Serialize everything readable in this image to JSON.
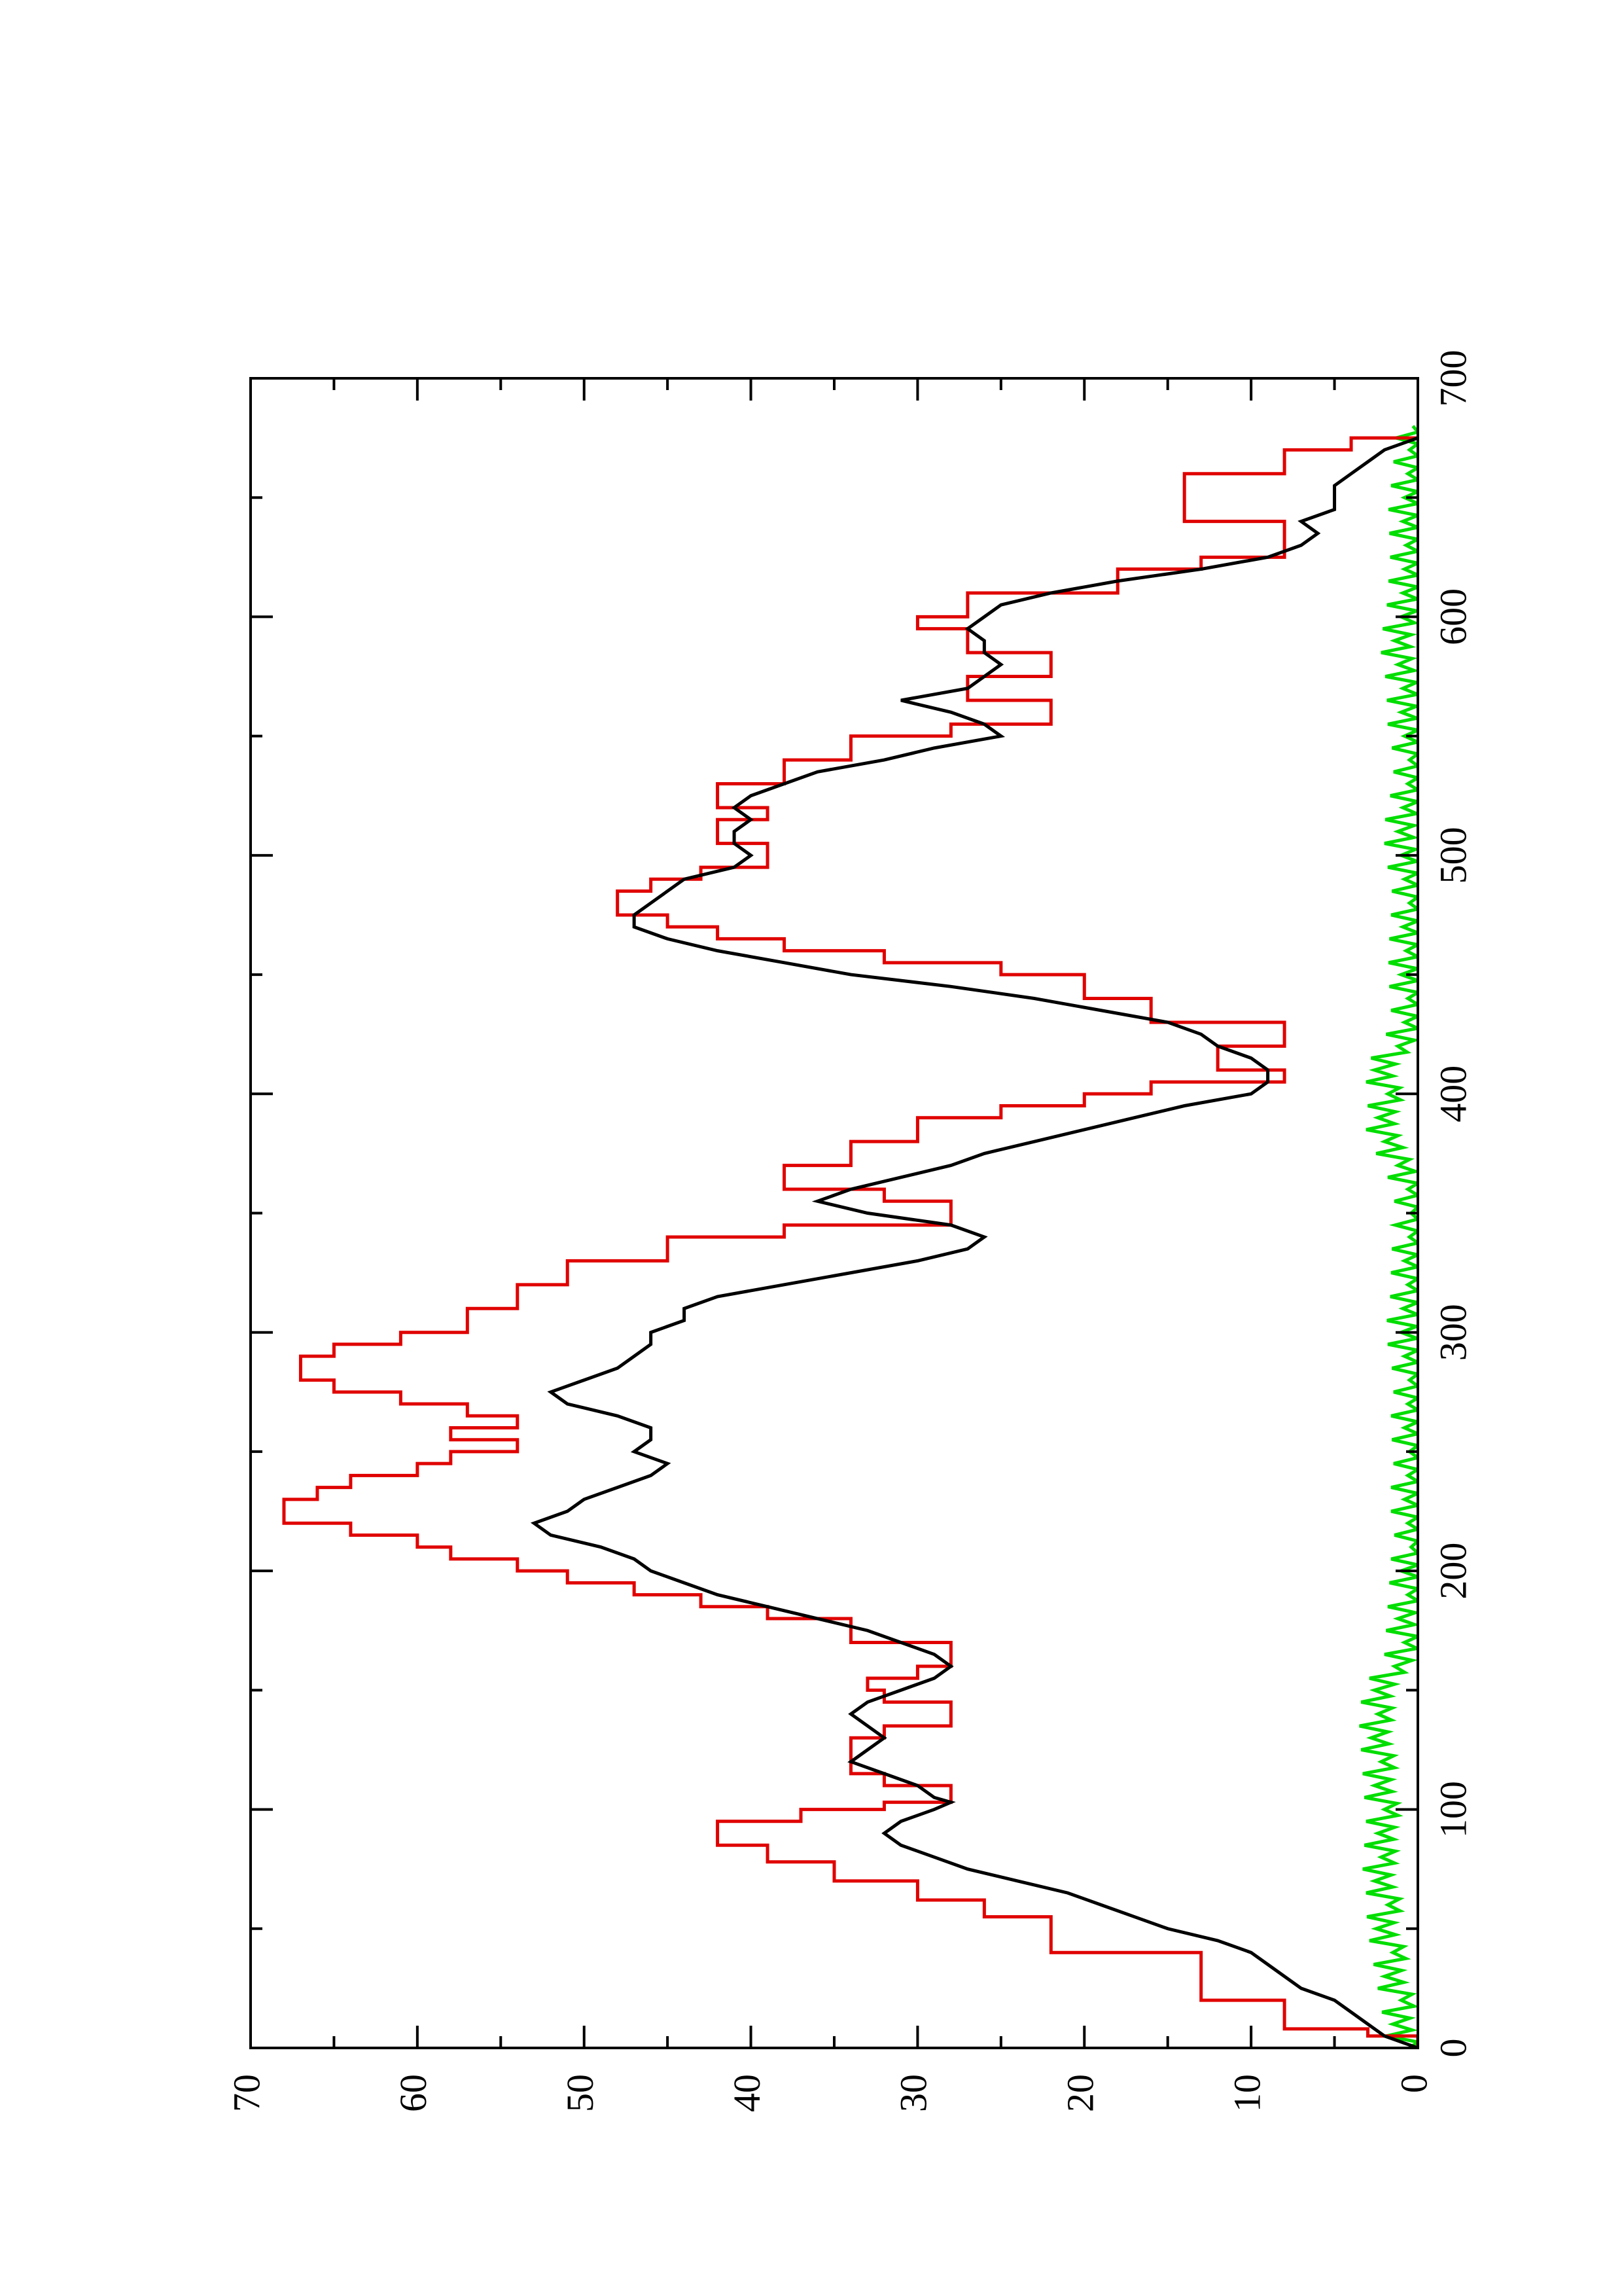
{
  "chart_data": {
    "type": "line",
    "orientation": "rotated-90-ccw",
    "title": "",
    "xlabel": "",
    "ylabel": "",
    "xlim": [
      0,
      700
    ],
    "ylim": [
      0,
      70
    ],
    "x_ticks_major": [
      0,
      100,
      200,
      300,
      400,
      500,
      600,
      700
    ],
    "x_ticks_minor": [
      50,
      150,
      250,
      350,
      450,
      550,
      650
    ],
    "y_ticks_major": [
      0,
      10,
      20,
      30,
      40,
      50,
      60,
      70
    ],
    "y_ticks_minor": [
      5,
      15,
      25,
      35,
      45,
      55,
      65
    ],
    "x_tick_labels": [
      "0",
      "100",
      "200",
      "300",
      "400",
      "500",
      "600",
      "700"
    ],
    "y_tick_labels": [
      "0",
      "10",
      "20",
      "30",
      "40",
      "50",
      "60",
      "70"
    ],
    "grid": false,
    "legend": "none",
    "series": [
      {
        "color": "#e00000",
        "style": "step",
        "x": [
          0,
          5,
          8,
          15,
          20,
          30,
          40,
          48,
          55,
          62,
          70,
          78,
          85,
          90,
          95,
          100,
          103,
          106,
          110,
          115,
          120,
          125,
          130,
          135,
          140,
          145,
          150,
          155,
          160,
          165,
          170,
          175,
          180,
          185,
          190,
          195,
          200,
          205,
          210,
          215,
          220,
          225,
          230,
          235,
          240,
          245,
          250,
          255,
          260,
          265,
          270,
          275,
          280,
          285,
          290,
          295,
          300,
          310,
          320,
          330,
          340,
          345,
          350,
          355,
          360,
          370,
          380,
          390,
          395,
          400,
          405,
          410,
          415,
          420,
          430,
          440,
          450,
          455,
          460,
          465,
          470,
          475,
          480,
          485,
          490,
          495,
          500,
          505,
          510,
          515,
          520,
          525,
          530,
          540,
          550,
          555,
          560,
          565,
          570,
          575,
          580,
          585,
          590,
          595,
          600,
          610,
          620,
          625,
          630,
          640,
          650,
          660,
          665,
          670,
          675
        ],
        "y": [
          0,
          3,
          8,
          8,
          13,
          13,
          22,
          22,
          26,
          30,
          35,
          39,
          42,
          42,
          37,
          32,
          28,
          28,
          32,
          34,
          34,
          34,
          32,
          28,
          28,
          32,
          33,
          30,
          28,
          28,
          34,
          34,
          39,
          43,
          47,
          51,
          54,
          58,
          60,
          64,
          68,
          68,
          66,
          64,
          60,
          58,
          54,
          58,
          54,
          57,
          61,
          65,
          67,
          67,
          65,
          61,
          57,
          54,
          51,
          45,
          38,
          28,
          28,
          32,
          38,
          34,
          30,
          25,
          20,
          16,
          8,
          12,
          12,
          8,
          16,
          20,
          25,
          32,
          38,
          42,
          45,
          48,
          48,
          46,
          43,
          39,
          39,
          42,
          42,
          39,
          42,
          42,
          38,
          34,
          28,
          22,
          22,
          27,
          27,
          22,
          22,
          27,
          27,
          30,
          27,
          18,
          13,
          8,
          8,
          14,
          14,
          8,
          8,
          4,
          0
        ]
      },
      {
        "color": "#000000",
        "style": "line",
        "x": [
          0,
          5,
          10,
          15,
          20,
          25,
          30,
          35,
          40,
          45,
          50,
          55,
          60,
          65,
          70,
          75,
          80,
          85,
          90,
          95,
          100,
          103,
          105,
          110,
          115,
          120,
          125,
          130,
          135,
          140,
          145,
          150,
          155,
          160,
          165,
          170,
          175,
          180,
          185,
          190,
          195,
          200,
          205,
          210,
          215,
          220,
          225,
          230,
          235,
          240,
          245,
          250,
          255,
          260,
          265,
          270,
          275,
          280,
          285,
          290,
          295,
          300,
          305,
          310,
          315,
          320,
          325,
          330,
          335,
          340,
          345,
          350,
          355,
          360,
          365,
          370,
          375,
          380,
          385,
          390,
          395,
          400,
          405,
          410,
          415,
          420,
          425,
          430,
          435,
          440,
          445,
          450,
          455,
          460,
          465,
          470,
          475,
          480,
          485,
          490,
          495,
          500,
          505,
          510,
          515,
          520,
          525,
          530,
          535,
          540,
          545,
          550,
          555,
          560,
          565,
          570,
          575,
          580,
          585,
          590,
          595,
          600,
          605,
          610,
          615,
          620,
          625,
          630,
          635,
          640,
          645,
          650,
          655,
          660,
          665,
          670,
          675
        ],
        "y": [
          0,
          2,
          3,
          4,
          5,
          7,
          8,
          9,
          10,
          12,
          15,
          17,
          19,
          21,
          24,
          27,
          29,
          31,
          32,
          31,
          29,
          28,
          29,
          30,
          32,
          34,
          33,
          32,
          33,
          34,
          33,
          31,
          29,
          28,
          29,
          31,
          33,
          36,
          39,
          42,
          44,
          46,
          47,
          49,
          52,
          53,
          51,
          50,
          48,
          46,
          45,
          47,
          46,
          46,
          48,
          51,
          52,
          50,
          48,
          47,
          46,
          46,
          44,
          44,
          42,
          38,
          34,
          30,
          27,
          26,
          28,
          33,
          36,
          34,
          31,
          28,
          26,
          23,
          20,
          17,
          14,
          10,
          9,
          9,
          10,
          12,
          13,
          15,
          19,
          23,
          28,
          34,
          38,
          42,
          45,
          47,
          47,
          46,
          45,
          44,
          41,
          40,
          41,
          41,
          40,
          41,
          40,
          38,
          36,
          32,
          29,
          25,
          26,
          28,
          31,
          27,
          26,
          25,
          26,
          26,
          27,
          26,
          25,
          22,
          18,
          13,
          9,
          7,
          6,
          7,
          5,
          5,
          5,
          4,
          3,
          2,
          0
        ]
      },
      {
        "color": "#00dd00",
        "style": "noise",
        "x": [
          0,
          10,
          20,
          30,
          40,
          50,
          60,
          70,
          80,
          90,
          100,
          110,
          120,
          130,
          140,
          150,
          160,
          170,
          180,
          190,
          200,
          210,
          220,
          230,
          240,
          250,
          260,
          270,
          280,
          290,
          300,
          310,
          320,
          330,
          340,
          350,
          360,
          370,
          380,
          390,
          400,
          410,
          420,
          430,
          440,
          450,
          460,
          470,
          480,
          490,
          500,
          510,
          520,
          530,
          540,
          550,
          560,
          570,
          580,
          590,
          600,
          610,
          620,
          630,
          640,
          650,
          660,
          670,
          680
        ],
        "y": [
          0.5,
          1.5,
          1.0,
          2.0,
          1.5,
          2.5,
          1.8,
          2.6,
          2.2,
          2.4,
          2.0,
          2.6,
          2.2,
          2.8,
          2.4,
          2.6,
          1.4,
          0.8,
          1.2,
          0.6,
          1.0,
          0.4,
          0.6,
          0.8,
          0.6,
          0.5,
          0.8,
          0.6,
          0.5,
          0.8,
          1.0,
          0.9,
          0.6,
          0.8,
          0.5,
          0.4,
          0.6,
          1.2,
          2.0,
          2.4,
          1.8,
          2.6,
          1.2,
          0.8,
          0.6,
          1.0,
          0.7,
          0.9,
          0.5,
          0.8,
          1.0,
          1.2,
          0.9,
          0.6,
          0.5,
          0.8,
          1.0,
          0.9,
          1.2,
          1.4,
          1.0,
          0.9,
          0.8,
          0.7,
          0.9,
          0.8,
          0.6,
          0.5,
          0.3
        ]
      }
    ]
  }
}
